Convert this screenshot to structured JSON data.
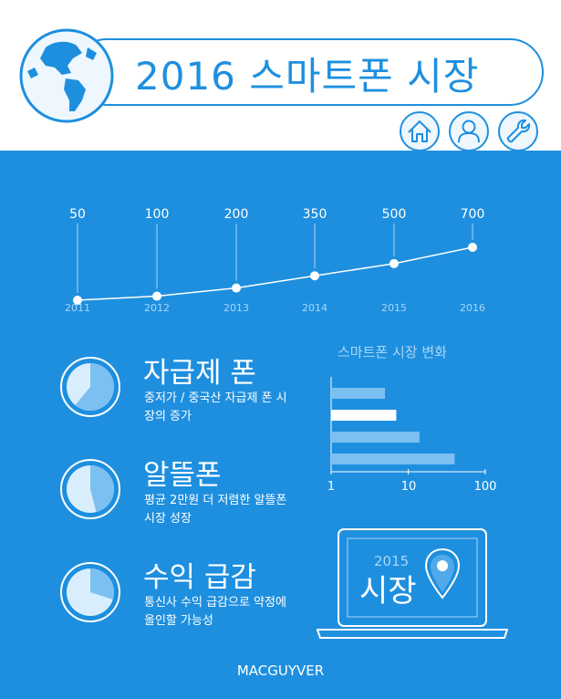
{
  "header": {
    "title": "2016 스마트폰 시장",
    "icons": [
      "globe-icon",
      "home-icon",
      "user-icon",
      "wrench-icon"
    ],
    "accent_color": "#1e8fdf"
  },
  "chart_data": [
    {
      "type": "line",
      "x": [
        "2011",
        "2012",
        "2013",
        "2014",
        "2015",
        "2016"
      ],
      "series": [
        {
          "values": [
            50,
            100,
            200,
            350,
            500,
            700
          ]
        }
      ],
      "data_labels": [
        "50",
        "100",
        "200",
        "350",
        "500",
        "700"
      ],
      "title": "",
      "xlabel": "",
      "ylabel": ""
    },
    {
      "type": "bar",
      "orientation": "horizontal",
      "title": "스마트폰 시장 변화",
      "scale": "log",
      "xlim": [
        1,
        100
      ],
      "tick_labels": [
        "1",
        "10",
        "100"
      ],
      "values": [
        5,
        7,
        14,
        40
      ],
      "highlight_index": 1
    }
  ],
  "features": [
    {
      "title": "자급제 폰",
      "desc": "중저가 / 중국산 자급제 폰 시장의 증가",
      "share": 0.61
    },
    {
      "title": "알뜰폰",
      "desc": "평균 2만원 더 저렴한 알뜰폰 시장 성장",
      "share": 0.46
    },
    {
      "title": "수익 급감",
      "desc": "통신사 수익 급감으로 약정에 올인할 가능성",
      "share": 0.3
    }
  ],
  "laptop": {
    "year": "2015",
    "label": "시장",
    "icon": "location-pin-icon"
  },
  "footer": {
    "brand": "MACGUYVER"
  },
  "colors": {
    "background": "#1e8fdf",
    "bar": "#7cc0f2",
    "pie_dark": "#7cc0f2",
    "pie_light": "#d9eefc"
  }
}
